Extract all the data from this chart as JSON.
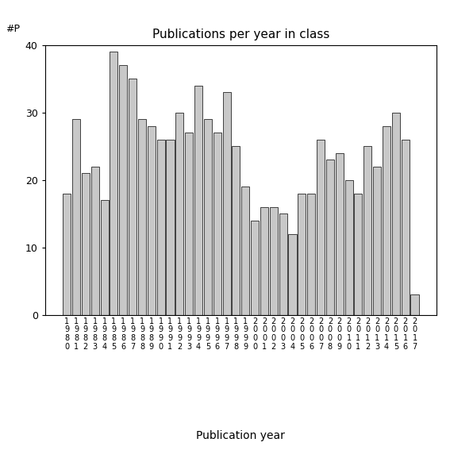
{
  "title": "Publications per year in class",
  "xlabel": "Publication year",
  "ylabel": "#P",
  "ylim": [
    0,
    40
  ],
  "yticks": [
    0,
    10,
    20,
    30,
    40
  ],
  "bar_color": "#c8c8c8",
  "bar_edgecolor": "#000000",
  "background_color": "#ffffff",
  "years": [
    "1980",
    "1981",
    "1982",
    "1983",
    "1984",
    "1985",
    "1986",
    "1987",
    "1988",
    "1989",
    "1990",
    "1991",
    "1992",
    "1993",
    "1994",
    "1995",
    "1996",
    "1997",
    "1998",
    "1999",
    "2000",
    "2001",
    "2002",
    "2003",
    "2004",
    "2005",
    "2006",
    "2007",
    "2008",
    "2009",
    "2010",
    "2011",
    "2012",
    "2013",
    "2014",
    "2015",
    "2016",
    "2017"
  ],
  "values": [
    18,
    29,
    21,
    22,
    17,
    39,
    37,
    35,
    29,
    28,
    26,
    26,
    30,
    27,
    34,
    29,
    27,
    33,
    25,
    19,
    14,
    16,
    16,
    15,
    12,
    18,
    18,
    26,
    23,
    24,
    20,
    18,
    25,
    22,
    28,
    30,
    26,
    3
  ],
  "title_fontsize": 11,
  "axis_fontsize": 9,
  "xlabel_fontsize": 10,
  "tick_label_fontsize": 7
}
